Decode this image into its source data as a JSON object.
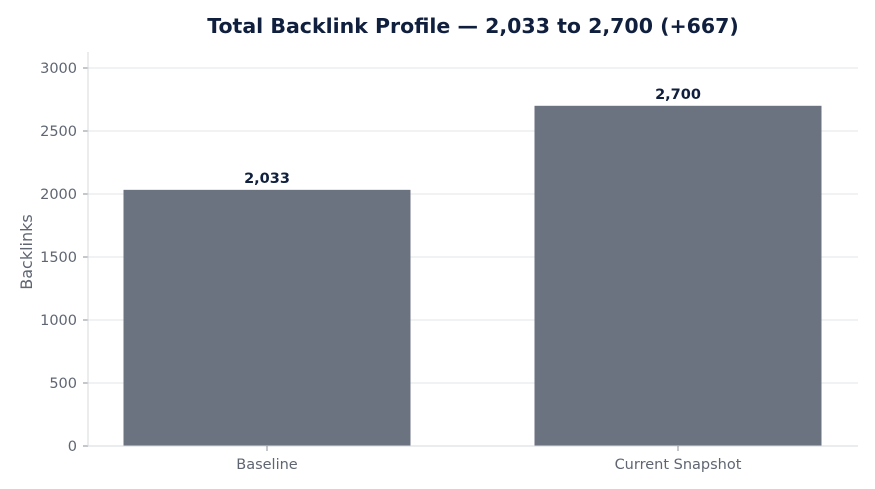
{
  "colors": {
    "bar": "#6b7280",
    "title": "#0f1f3d",
    "axis_text": "#5f6672",
    "grid": "#e1e4e8"
  },
  "chart_data": {
    "type": "bar",
    "title": "Total Backlink Profile — 2,033 to 2,700 (+667)",
    "xlabel": "",
    "ylabel": "Backlinks",
    "categories": [
      "Baseline",
      "Current Snapshot"
    ],
    "values": [
      2033,
      2700
    ],
    "data_labels": [
      "2,033",
      "2,700"
    ],
    "ylim": [
      0,
      3000
    ],
    "yticks": [
      0,
      500,
      1000,
      1500,
      2000,
      2500,
      3000
    ],
    "ytick_labels": [
      "0",
      "500",
      "1000",
      "1500",
      "2000",
      "2500",
      "3000"
    ],
    "grid": true,
    "legend": "none"
  }
}
